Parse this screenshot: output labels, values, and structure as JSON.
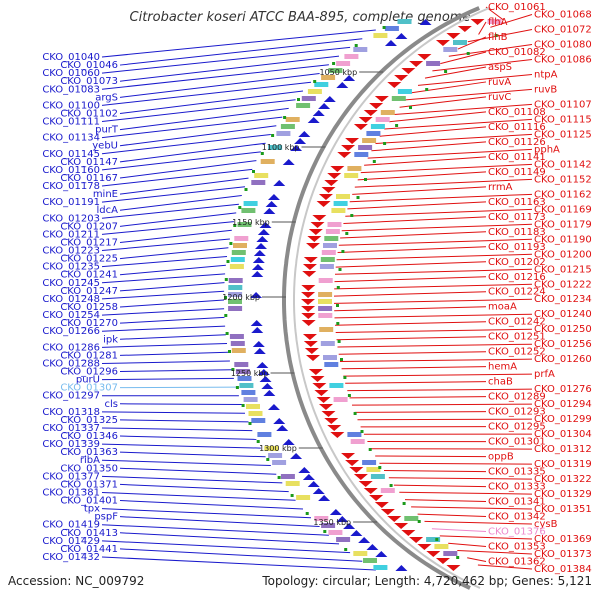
{
  "title": "Citrobacter koseri ATCC BAA-895, complete genome",
  "footer": {
    "accession": "Accession: NC_009792",
    "topology": "Topology: circular; Length: 4,720,462 bp; Genes: 5,121"
  },
  "colors": {
    "left_strand": "#1a1acc",
    "right_strand": "#e01010",
    "highlight": "#77bbee",
    "highlight_right": "#ee88cc",
    "backbone": "#8a8a8a"
  },
  "kbp_ticks": [
    "1050 kbp",
    "1100 kbp",
    "1150 kbp",
    "1200 kbp",
    "1250 kbp",
    "1300 kbp",
    "1350 kbp"
  ],
  "left_labels": [
    "CKO_01040",
    "CKO_01046",
    "CKO_01060",
    "CKO_01073",
    "CKO_01083",
    "argS",
    "CKO_01100",
    "CKO_01102",
    "CKO_01111",
    "purT",
    "CKO_01134",
    "yebU",
    "CKO_01145",
    "CKO_01147",
    "CKO_01160",
    "CKO_01167",
    "CKO_01178",
    "minE",
    "CKO_01191",
    "ldcA",
    "CKO_01203",
    "CKO_01207",
    "CKO_01211",
    "CKO_01217",
    "CKO_01223",
    "CKO_01225",
    "CKO_01235",
    "CKO_01241",
    "CKO_01245",
    "CKO_01247",
    "CKO_01248",
    "CKO_01258",
    "CKO_01254",
    "CKO_01270",
    "CKO_01266",
    "ipk",
    "CKO_01286",
    "CKO_01281",
    "CKO_01288",
    "CKO_01296",
    "purU",
    "CKO_01307",
    "CKO_01297",
    "cls",
    "CKO_01318",
    "CKO_01325",
    "CKO_01337",
    "CKO_01346",
    "CKO_01339",
    "CKO_01363",
    "ribA",
    "CKO_01350",
    "CKO_01377",
    "CKO_01371",
    "CKO_01381",
    "CKO_01401",
    "tpx",
    "pspF",
    "CKO_01419",
    "CKO_01413",
    "CKO_01429",
    "CKO_01441",
    "CKO_01432"
  ],
  "right_labels": [
    "CKO_01061",
    "CKO_01068",
    "flhA",
    "CKO_01072",
    "flhB",
    "CKO_01080",
    "CKO_01082",
    "CKO_01086",
    "aspS",
    "ntpA",
    "ruvA",
    "ruvB",
    "ruvC",
    "CKO_01107",
    "CKO_01108",
    "CKO_01115",
    "CKO_01116",
    "CKO_01125",
    "CKO_01126",
    "pphA",
    "CKO_01141",
    "CKO_01142",
    "CKO_01149",
    "CKO_01152",
    "rrmA",
    "CKO_01162",
    "CKO_01163",
    "CKO_01169",
    "CKO_01173",
    "CKO_01179",
    "CKO_01183",
    "CKO_01190",
    "CKO_01193",
    "CKO_01200",
    "CKO_01202",
    "CKO_01215",
    "CKO_01216",
    "CKO_01222",
    "CKO_01224",
    "CKO_01234",
    "moaA",
    "CKO_01240",
    "CKO_01242",
    "CKO_01250",
    "CKO_01251",
    "CKO_01256",
    "CKO_01252",
    "CKO_01260",
    "hemA",
    "prfA",
    "chaB",
    "CKO_01276",
    "CKO_01289",
    "CKO_01294",
    "CKO_01293",
    "CKO_01299",
    "CKO_01295",
    "CKO_01304",
    "CKO_01301",
    "CKO_01312",
    "oppB",
    "CKO_01319",
    "CKO_01335",
    "CKO_01322",
    "CKO_01333",
    "CKO_01329",
    "CKO_01341",
    "CKO_01351",
    "CKO_01342",
    "cysB",
    "CKO_01376",
    "CKO_01369",
    "CKO_01353",
    "CKO_01373",
    "CKO_01362",
    "CKO_01384"
  ]
}
